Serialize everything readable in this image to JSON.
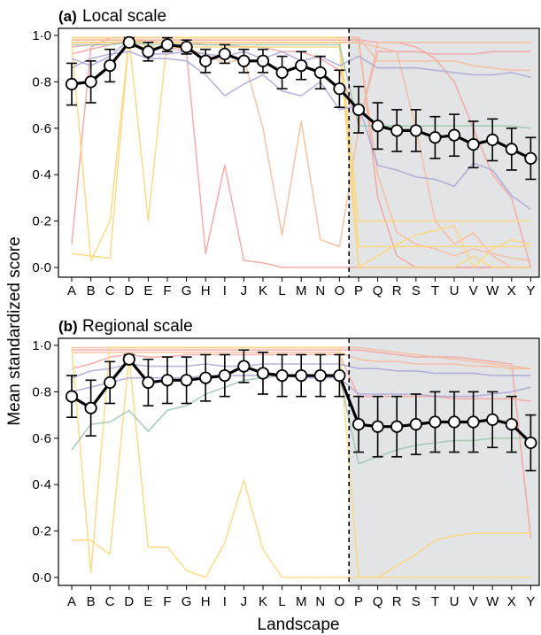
{
  "figure": {
    "ylabel": "Mean standardized score",
    "xlabel": "Landscape"
  },
  "chart_data": [
    {
      "type": "line",
      "panel_letter": "(a)",
      "title": "Local scale",
      "xlabel": "Landscape",
      "ylabel": "Mean standardized score",
      "categories": [
        "A",
        "B",
        "C",
        "D",
        "E",
        "F",
        "G",
        "H",
        "I",
        "J",
        "K",
        "L",
        "M",
        "N",
        "O",
        "P",
        "Q",
        "R",
        "S",
        "T",
        "U",
        "V",
        "W",
        "X",
        "Y"
      ],
      "ylim": [
        0,
        1
      ],
      "yticks": [
        "0·0",
        "0·2",
        "0·4",
        "0·6",
        "0·8",
        "1·0"
      ],
      "shaded_from_category": "P",
      "divider_after_category": "O",
      "mean_series": {
        "values": [
          0.79,
          0.8,
          0.87,
          0.97,
          0.93,
          0.96,
          0.95,
          0.89,
          0.92,
          0.89,
          0.89,
          0.84,
          0.87,
          0.84,
          0.77,
          0.68,
          0.61,
          0.59,
          0.59,
          0.56,
          0.57,
          0.53,
          0.55,
          0.51,
          0.47
        ],
        "error": [
          0.09,
          0.09,
          0.07,
          0.02,
          0.04,
          0.03,
          0.03,
          0.05,
          0.04,
          0.05,
          0.05,
          0.07,
          0.06,
          0.07,
          0.08,
          0.1,
          0.1,
          0.09,
          0.09,
          0.09,
          0.09,
          0.1,
          0.09,
          0.09,
          0.09
        ]
      },
      "background_series": [
        {
          "color": "#f4a3a0",
          "values": [
            0.1,
            0.95,
            0.99,
            0.99,
            0.99,
            0.99,
            0.99,
            0.99,
            0.99,
            0.99,
            0.99,
            0.99,
            0.99,
            0.99,
            0.99,
            0.99,
            0.3,
            0.05,
            0.0,
            0.0,
            0.0,
            0.0,
            0.0,
            0.0,
            0.0
          ]
        },
        {
          "color": "#f4a3a0",
          "values": [
            0.98,
            0.98,
            0.98,
            0.98,
            0.98,
            0.98,
            0.98,
            0.98,
            0.98,
            0.98,
            0.98,
            0.98,
            0.98,
            0.98,
            0.98,
            0.98,
            0.97,
            0.97,
            0.95,
            0.9,
            0.8,
            0.6,
            0.4,
            0.3,
            0.0
          ]
        },
        {
          "color": "#f4a3a0",
          "values": [
            0.92,
            0.94,
            0.96,
            0.97,
            0.94,
            0.95,
            0.93,
            0.06,
            0.44,
            0.03,
            0.02,
            0.0,
            0.0,
            0.0,
            0.0,
            0.0,
            0.0,
            0.0,
            0.0,
            0.0,
            0.0,
            0.0,
            0.0,
            0.0,
            0.0
          ]
        },
        {
          "color": "#f4a3a0",
          "values": [
            0.95,
            0.96,
            0.96,
            0.98,
            0.97,
            0.97,
            0.97,
            0.96,
            0.96,
            0.95,
            0.95,
            0.93,
            0.93,
            0.9,
            0.85,
            0.62,
            0.93,
            0.93,
            0.93,
            0.92,
            0.92,
            0.92,
            0.93,
            0.93,
            0.93
          ]
        },
        {
          "color": "#f7bb9a",
          "values": [
            0.97,
            0.97,
            0.97,
            0.97,
            0.97,
            0.97,
            0.97,
            0.97,
            0.97,
            0.97,
            0.97,
            0.97,
            0.97,
            0.97,
            0.97,
            0.97,
            0.95,
            0.93,
            0.6,
            0.2,
            0.1,
            0.15,
            0.05,
            0.0,
            0.0
          ]
        },
        {
          "color": "#f7bb9a",
          "values": [
            0.99,
            0.99,
            0.99,
            0.99,
            0.99,
            0.99,
            0.99,
            0.99,
            0.99,
            0.99,
            0.99,
            0.99,
            0.99,
            0.99,
            0.99,
            0.99,
            0.89,
            0.89,
            0.89,
            0.89,
            0.89,
            0.87,
            0.86,
            0.85,
            0.85
          ]
        },
        {
          "color": "#f7bb9a",
          "values": [
            0.98,
            0.98,
            0.98,
            0.98,
            0.98,
            0.96,
            0.94,
            0.92,
            0.88,
            0.9,
            0.6,
            0.14,
            0.63,
            0.12,
            0.09,
            0.6,
            0.97,
            0.97,
            0.97,
            0.97,
            0.97,
            0.97,
            0.97,
            0.97,
            0.97
          ]
        },
        {
          "color": "#f7bb9a",
          "values": [
            0.97,
            0.97,
            0.97,
            0.97,
            0.97,
            0.97,
            0.97,
            0.97,
            0.97,
            0.97,
            0.97,
            0.97,
            0.97,
            0.97,
            0.97,
            0.97,
            0.4,
            0.15,
            0.1,
            0.08,
            0.05,
            0.08,
            0.06,
            0.04,
            0.03
          ]
        },
        {
          "color": "#fbd77a",
          "values": [
            0.06,
            0.05,
            0.04,
            0.99,
            0.95,
            0.95,
            0.95,
            0.95,
            0.95,
            0.95,
            0.95,
            0.95,
            0.95,
            0.95,
            0.95,
            0.0,
            0.0,
            0.0,
            0.0,
            0.0,
            0.0,
            0.05,
            0.0,
            0.0,
            0.0
          ]
        },
        {
          "color": "#fbd77a",
          "values": [
            0.97,
            0.03,
            0.2,
            0.99,
            0.2,
            0.99,
            0.99,
            0.99,
            0.99,
            0.99,
            0.99,
            0.99,
            0.99,
            0.99,
            0.99,
            0.09,
            0.09,
            0.09,
            0.09,
            0.09,
            0.09,
            0.09,
            0.09,
            0.09,
            0.09
          ]
        },
        {
          "color": "#fbd77a",
          "values": [
            0.99,
            0.99,
            0.99,
            0.99,
            0.99,
            0.99,
            0.99,
            0.99,
            0.99,
            0.99,
            0.99,
            0.99,
            0.99,
            0.99,
            0.99,
            0.2,
            0.2,
            0.2,
            0.2,
            0.2,
            0.2,
            0.2,
            0.2,
            0.2,
            0.2
          ]
        },
        {
          "color": "#fbd77a",
          "values": [
            0.97,
            0.97,
            0.97,
            0.97,
            0.97,
            0.97,
            0.97,
            0.97,
            0.97,
            0.97,
            0.97,
            0.97,
            0.97,
            0.97,
            0.97,
            0.0,
            0.05,
            0.1,
            0.14,
            0.16,
            0.18,
            0.0,
            0.08,
            0.12,
            0.1
          ]
        },
        {
          "color": "#a9a7d6",
          "values": [
            0.86,
            0.9,
            0.92,
            0.93,
            0.9,
            0.9,
            0.89,
            0.83,
            0.74,
            0.79,
            0.83,
            0.76,
            0.74,
            0.8,
            0.68,
            0.7,
            0.44,
            0.42,
            0.39,
            0.38,
            0.35,
            0.45,
            0.42,
            0.31,
            0.25
          ]
        },
        {
          "color": "#a9a7d6",
          "values": [
            0.9,
            0.87,
            0.91,
            0.98,
            0.92,
            0.92,
            0.93,
            0.92,
            0.91,
            0.93,
            0.9,
            0.93,
            0.89,
            0.91,
            0.87,
            0.91,
            0.86,
            0.86,
            0.86,
            0.85,
            0.84,
            0.83,
            0.83,
            0.84,
            0.82
          ]
        },
        {
          "color": "#9cc6b2",
          "values": [
            0.96,
            0.96,
            0.96,
            0.97,
            0.96,
            0.96,
            0.96,
            0.96,
            0.96,
            0.96,
            0.96,
            0.96,
            0.96,
            0.96,
            0.96,
            0.61,
            0.61,
            0.61,
            0.61,
            0.61,
            0.61,
            0.61,
            0.61,
            0.61,
            0.6
          ]
        }
      ]
    },
    {
      "type": "line",
      "panel_letter": "(b)",
      "title": "Regional scale",
      "xlabel": "Landscape",
      "ylabel": "Mean standardized score",
      "categories": [
        "A",
        "B",
        "C",
        "D",
        "E",
        "F",
        "G",
        "H",
        "I",
        "J",
        "K",
        "L",
        "M",
        "N",
        "O",
        "P",
        "Q",
        "R",
        "S",
        "T",
        "U",
        "V",
        "W",
        "X",
        "Y"
      ],
      "ylim": [
        0,
        1
      ],
      "yticks": [
        "0·0",
        "0·2",
        "0·4",
        "0·6",
        "0·8",
        "1·0"
      ],
      "shaded_from_category": "P",
      "divider_after_category": "O",
      "mean_series": {
        "values": [
          0.78,
          0.73,
          0.84,
          0.94,
          0.84,
          0.85,
          0.85,
          0.86,
          0.87,
          0.91,
          0.88,
          0.87,
          0.87,
          0.87,
          0.87,
          0.66,
          0.65,
          0.65,
          0.66,
          0.67,
          0.67,
          0.67,
          0.68,
          0.66,
          0.58
        ],
        "error": [
          0.09,
          0.12,
          0.09,
          0.02,
          0.1,
          0.1,
          0.1,
          0.1,
          0.09,
          0.07,
          0.09,
          0.09,
          0.09,
          0.09,
          0.09,
          0.12,
          0.13,
          0.13,
          0.13,
          0.13,
          0.13,
          0.13,
          0.12,
          0.12,
          0.12
        ]
      },
      "background_series": [
        {
          "color": "#f4a3a0",
          "values": [
            0.98,
            0.98,
            0.98,
            0.98,
            0.98,
            0.98,
            0.98,
            0.98,
            0.98,
            0.98,
            0.98,
            0.98,
            0.98,
            0.98,
            0.98,
            0.98,
            0.97,
            0.96,
            0.95,
            0.95,
            0.95,
            0.94,
            0.93,
            0.92,
            0.17
          ]
        },
        {
          "color": "#f4a3a0",
          "values": [
            0.9,
            0.92,
            0.95,
            0.96,
            0.95,
            0.95,
            0.96,
            0.96,
            0.96,
            0.96,
            0.96,
            0.96,
            0.96,
            0.96,
            0.96,
            0.78,
            0.78,
            0.78,
            0.78,
            0.78,
            0.77,
            0.77,
            0.77,
            0.77,
            0.76
          ]
        },
        {
          "color": "#f7bb9a",
          "values": [
            0.99,
            0.99,
            0.99,
            0.99,
            0.99,
            0.99,
            0.99,
            0.99,
            0.99,
            0.99,
            0.99,
            0.99,
            0.99,
            0.99,
            0.99,
            0.99,
            0.98,
            0.97,
            0.96,
            0.95,
            0.94,
            0.93,
            0.92,
            0.91,
            0.9
          ]
        },
        {
          "color": "#f7bb9a",
          "values": [
            0.97,
            0.97,
            0.97,
            0.97,
            0.97,
            0.97,
            0.97,
            0.97,
            0.97,
            0.97,
            0.97,
            0.97,
            0.97,
            0.97,
            0.97,
            0.94,
            0.93,
            0.93,
            0.92,
            0.92,
            0.92,
            0.91,
            0.91,
            0.9,
            0.9
          ]
        },
        {
          "color": "#fbd77a",
          "values": [
            0.16,
            0.16,
            0.1,
            0.95,
            0.13,
            0.13,
            0.03,
            0.0,
            0.15,
            0.42,
            0.12,
            0.0,
            0.0,
            0.0,
            0.0,
            0.0,
            0.0,
            0.0,
            0.0,
            0.0,
            0.0,
            0.0,
            0.0,
            0.0,
            0.0
          ]
        },
        {
          "color": "#fbd77a",
          "values": [
            0.99,
            0.02,
            0.99,
            0.99,
            0.99,
            0.99,
            0.99,
            0.99,
            0.99,
            0.99,
            0.99,
            0.99,
            0.99,
            0.99,
            0.99,
            0.0,
            0.0,
            0.05,
            0.1,
            0.16,
            0.18,
            0.19,
            0.19,
            0.19,
            0.19
          ]
        },
        {
          "color": "#a9a7d6",
          "values": [
            0.86,
            0.89,
            0.9,
            0.92,
            0.91,
            0.91,
            0.91,
            0.92,
            0.91,
            0.91,
            0.92,
            0.92,
            0.92,
            0.92,
            0.92,
            0.9,
            0.9,
            0.89,
            0.89,
            0.88,
            0.88,
            0.88,
            0.87,
            0.87,
            0.87
          ]
        },
        {
          "color": "#a9a7d6",
          "values": [
            0.8,
            0.82,
            0.84,
            0.86,
            0.86,
            0.86,
            0.86,
            0.87,
            0.87,
            0.87,
            0.87,
            0.87,
            0.86,
            0.86,
            0.86,
            0.79,
            0.79,
            0.79,
            0.79,
            0.78,
            0.78,
            0.78,
            0.79,
            0.8,
            0.82
          ]
        },
        {
          "color": "#9cc6b2",
          "values": [
            0.55,
            0.66,
            0.67,
            0.72,
            0.63,
            0.72,
            0.74,
            0.79,
            0.82,
            0.85,
            0.86,
            0.87,
            0.87,
            0.87,
            0.87,
            0.49,
            0.52,
            0.55,
            0.57,
            0.58,
            0.59,
            0.59,
            0.6,
            0.6,
            0.6
          ]
        }
      ]
    }
  ]
}
